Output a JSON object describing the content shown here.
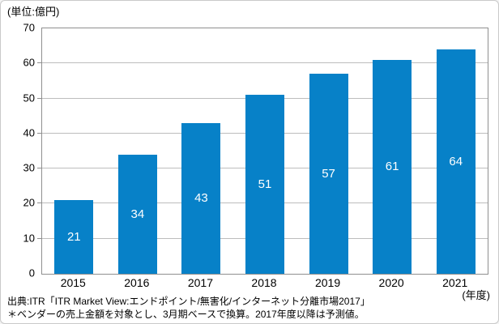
{
  "unit_label": "(単位:億円)",
  "x_axis_unit": "(年度)",
  "footer": {
    "source_line": "出典:ITR「ITR Market View:エンドポイント/無害化/インターネット分離市場2017」",
    "note_line": "＊ベンダーの売上金額を対象とし、3月期ベースで換算。2017年度以降は予測値。"
  },
  "chart_data": {
    "type": "bar",
    "categories": [
      "2015",
      "2016",
      "2017",
      "2018",
      "2019",
      "2020",
      "2021"
    ],
    "values": [
      21,
      34,
      43,
      51,
      57,
      61,
      64
    ],
    "title": "",
    "xlabel": "(年度)",
    "ylabel": "(単位:億円)",
    "ylim": [
      0,
      70
    ],
    "ytick_interval": 10,
    "grid": true,
    "legend": "none",
    "bar_color": "#0781c8",
    "bar_value_label_color": "#ffffff",
    "bar_value_label_position": "center"
  },
  "colors": {
    "bar": "#0781c8",
    "gridline": "#bdbdbd",
    "plot_border": "#8f8f8f",
    "outer_border": "#c9c9c9",
    "background": "#ffffff",
    "text": "#000000"
  }
}
